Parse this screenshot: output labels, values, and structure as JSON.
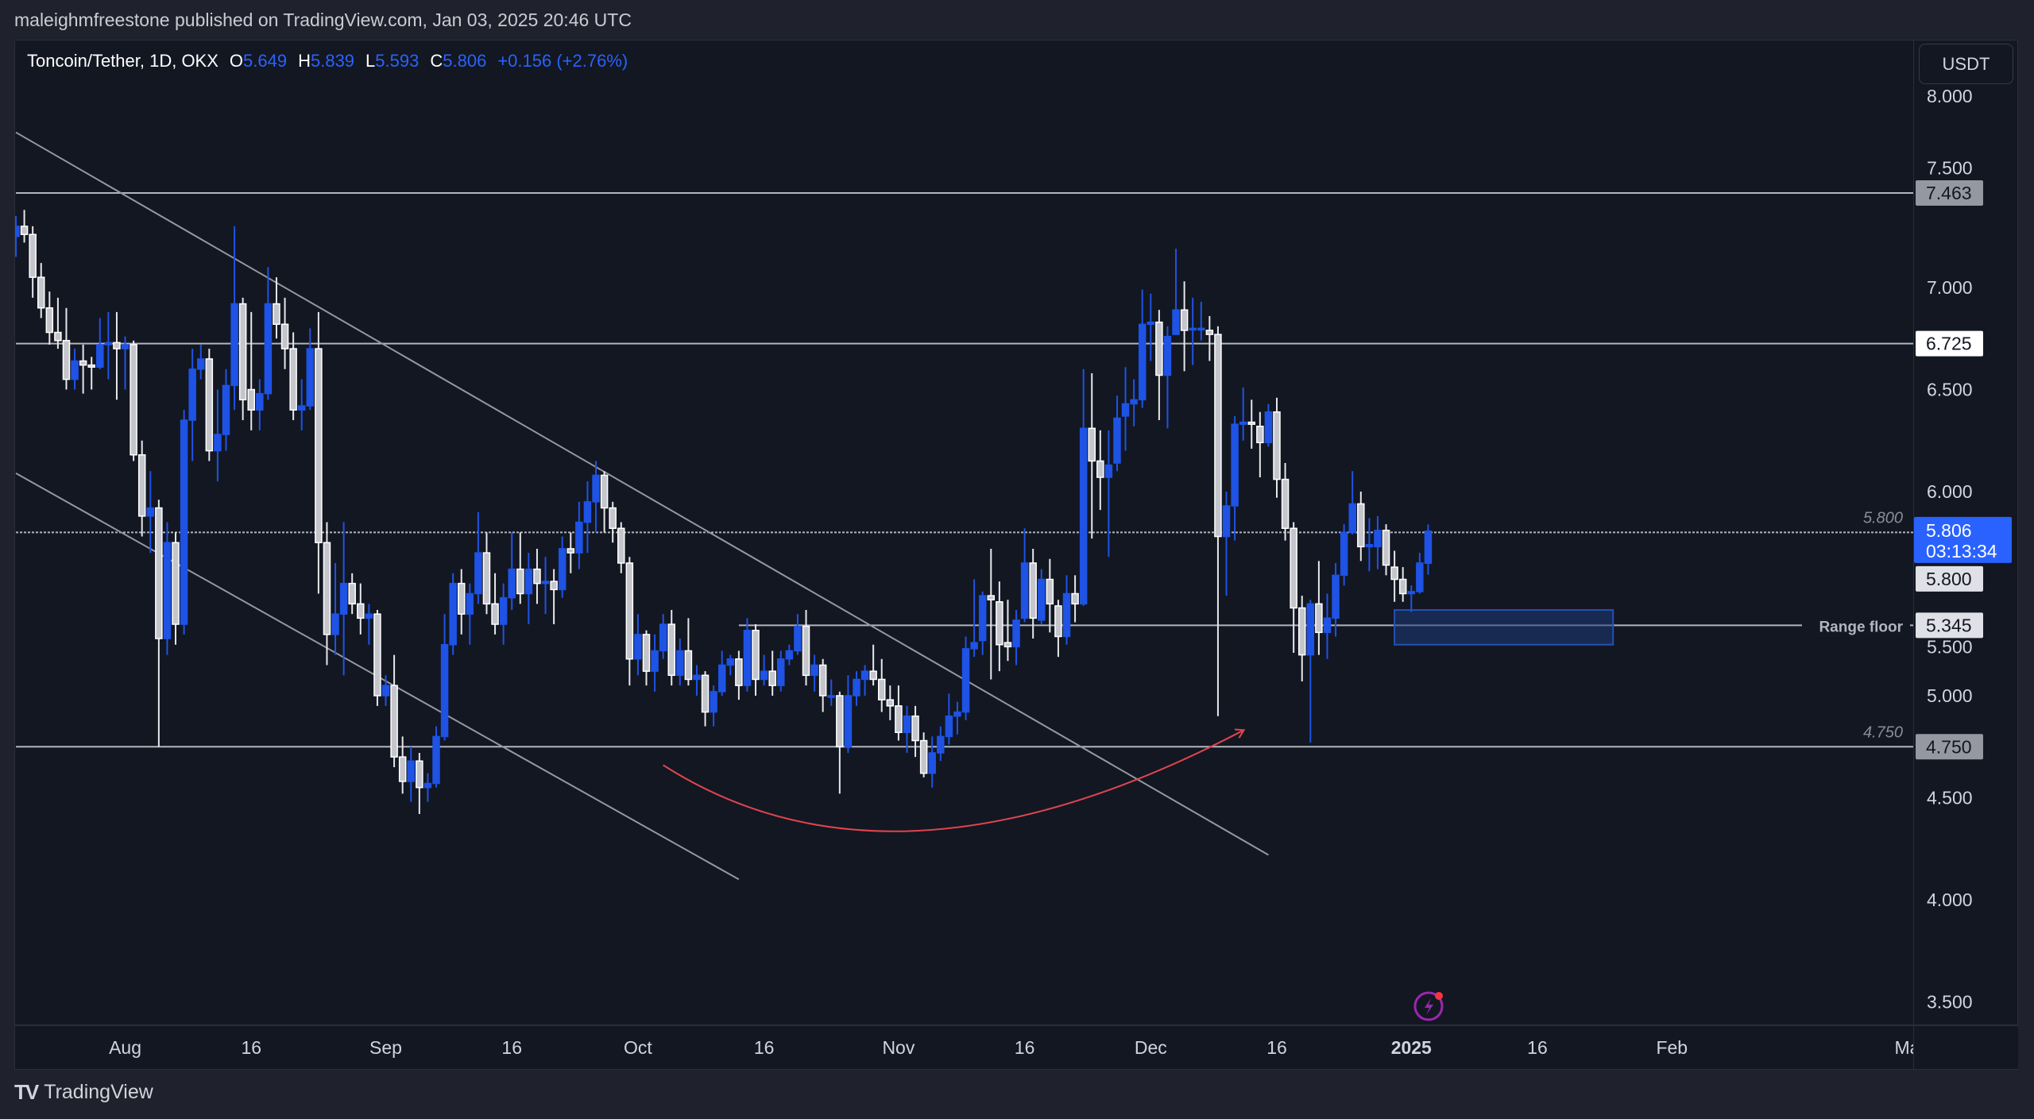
{
  "header": {
    "published": "maleighmfreestone published on TradingView.com, Jan 03, 2025 20:46 UTC"
  },
  "legend": {
    "symbol": "Toncoin/Tether, 1D, OKX",
    "o_label": "O",
    "o": "5.649",
    "h_label": "H",
    "h": "5.839",
    "l_label": "L",
    "l": "5.593",
    "c_label": "C",
    "c": "5.806",
    "change": "+0.156 (+2.76%)"
  },
  "currency_button": "USDT",
  "footer": {
    "brand": "TradingView",
    "logo_icon": "tradingview-logo-icon"
  },
  "colors": {
    "up": "#1e53e5",
    "down": "#c4c6cc",
    "down_border": "#ffffff",
    "last_price": "#2962ff",
    "arc": "#e0454f",
    "zone": "#1e3a7a",
    "background": "#131722"
  },
  "chart_data": {
    "type": "candlestick",
    "ylim": [
      3.4,
      8.2
    ],
    "y_ticks": [
      "8.000",
      "7.500",
      "7.000",
      "6.500",
      "6.000",
      "5.500",
      "5.000",
      "4.500",
      "4.000",
      "3.500"
    ],
    "x_ticks": [
      {
        "date": "2024-08-01",
        "label": "Aug"
      },
      {
        "date": "2024-08-16",
        "label": "16"
      },
      {
        "date": "2024-09-01",
        "label": "Sep"
      },
      {
        "date": "2024-09-16",
        "label": "16"
      },
      {
        "date": "2024-10-01",
        "label": "Oct"
      },
      {
        "date": "2024-10-16",
        "label": "16"
      },
      {
        "date": "2024-11-01",
        "label": "Nov"
      },
      {
        "date": "2024-11-16",
        "label": "16"
      },
      {
        "date": "2024-12-01",
        "label": "Dec"
      },
      {
        "date": "2024-12-16",
        "label": "16"
      },
      {
        "date": "2025-01-01",
        "label": "2025"
      },
      {
        "date": "2025-01-16",
        "label": "16"
      },
      {
        "date": "2025-02-01",
        "label": "Feb"
      },
      {
        "date": "2025-03-01",
        "label": "Ma"
      }
    ],
    "last_price": {
      "value": "5.806",
      "countdown": "03:13:34"
    },
    "price_labels": [
      {
        "value": "7.463",
        "style": "gray"
      },
      {
        "value": "6.725",
        "style": "white"
      },
      {
        "value": "5.800",
        "style": "light"
      },
      {
        "value": "5.345",
        "style": "light"
      },
      {
        "value": "4.750",
        "style": "gray"
      }
    ],
    "horizontal_lines": [
      {
        "price": 7.463,
        "from": "2024-07-19",
        "text": ""
      },
      {
        "price": 6.725,
        "from": "2024-07-19",
        "text": ""
      },
      {
        "price": 5.8,
        "from": "2024-07-19",
        "text": "5.800",
        "dotted": true
      },
      {
        "price": 5.345,
        "from": "2024-10-13",
        "text": "Range floor",
        "bold": true
      },
      {
        "price": 4.75,
        "from": "2024-07-19",
        "text": "4.750"
      }
    ],
    "trendlines": [
      {
        "from": [
          "2024-07-19",
          7.76
        ],
        "to": [
          "2024-12-15",
          4.22
        ]
      },
      {
        "from": [
          "2024-07-19",
          6.09
        ],
        "to": [
          "2024-10-13",
          4.1
        ]
      }
    ],
    "zone": {
      "from": "2024-12-30",
      "to": "2025-01-25",
      "top": 5.42,
      "bottom": 5.25
    },
    "arc": {
      "start": [
        "2024-10-04",
        4.66
      ],
      "bottom": [
        "2024-11-04",
        4.34
      ],
      "end": [
        "2024-12-12",
        4.83
      ]
    },
    "candles_fields": [
      "date",
      "open",
      "high",
      "low",
      "close"
    ],
    "candles": [
      [
        "2024-07-19",
        7.25,
        7.35,
        7.15,
        7.3
      ],
      [
        "2024-07-20",
        7.3,
        7.38,
        7.22,
        7.26
      ],
      [
        "2024-07-21",
        7.26,
        7.3,
        6.95,
        7.05
      ],
      [
        "2024-07-22",
        7.05,
        7.12,
        6.85,
        6.9
      ],
      [
        "2024-07-23",
        6.9,
        6.98,
        6.72,
        6.78
      ],
      [
        "2024-07-24",
        6.78,
        6.95,
        6.7,
        6.74
      ],
      [
        "2024-07-25",
        6.74,
        6.9,
        6.5,
        6.55
      ],
      [
        "2024-07-26",
        6.55,
        6.7,
        6.5,
        6.64
      ],
      [
        "2024-07-27",
        6.64,
        6.72,
        6.48,
        6.62
      ],
      [
        "2024-07-28",
        6.62,
        6.66,
        6.5,
        6.61
      ],
      [
        "2024-07-29",
        6.61,
        6.85,
        6.6,
        6.72
      ],
      [
        "2024-07-30",
        6.72,
        6.88,
        6.55,
        6.73
      ],
      [
        "2024-07-31",
        6.73,
        6.88,
        6.45,
        6.7
      ],
      [
        "2024-08-01",
        6.7,
        6.76,
        6.5,
        6.72
      ],
      [
        "2024-08-02",
        6.72,
        6.74,
        6.15,
        6.18
      ],
      [
        "2024-08-03",
        6.18,
        6.25,
        5.78,
        5.88
      ],
      [
        "2024-08-04",
        5.88,
        6.1,
        5.7,
        5.92
      ],
      [
        "2024-08-05",
        5.92,
        5.96,
        4.75,
        5.28
      ],
      [
        "2024-08-06",
        5.28,
        5.85,
        5.2,
        5.75
      ],
      [
        "2024-08-07",
        5.75,
        5.8,
        5.25,
        5.35
      ],
      [
        "2024-08-08",
        5.35,
        6.4,
        5.3,
        6.35
      ],
      [
        "2024-08-09",
        6.35,
        6.7,
        6.15,
        6.6
      ],
      [
        "2024-08-10",
        6.6,
        6.72,
        6.55,
        6.65
      ],
      [
        "2024-08-11",
        6.65,
        6.7,
        6.15,
        6.2
      ],
      [
        "2024-08-12",
        6.2,
        6.5,
        6.05,
        6.28
      ],
      [
        "2024-08-13",
        6.28,
        6.6,
        6.2,
        6.52
      ],
      [
        "2024-08-14",
        6.52,
        7.3,
        6.4,
        6.92
      ],
      [
        "2024-08-15",
        6.92,
        6.95,
        6.35,
        6.45
      ],
      [
        "2024-08-16",
        6.5,
        6.88,
        6.3,
        6.4
      ],
      [
        "2024-08-17",
        6.4,
        6.55,
        6.3,
        6.48
      ],
      [
        "2024-08-18",
        6.48,
        7.1,
        6.45,
        6.92
      ],
      [
        "2024-08-19",
        6.92,
        7.05,
        6.75,
        6.82
      ],
      [
        "2024-08-20",
        6.82,
        6.95,
        6.6,
        6.7
      ],
      [
        "2024-08-21",
        6.7,
        6.78,
        6.35,
        6.4
      ],
      [
        "2024-08-22",
        6.4,
        6.55,
        6.3,
        6.42
      ],
      [
        "2024-08-23",
        6.42,
        6.8,
        6.4,
        6.7
      ],
      [
        "2024-08-24",
        6.7,
        6.88,
        5.5,
        5.75
      ],
      [
        "2024-08-25",
        5.75,
        5.85,
        5.15,
        5.3
      ],
      [
        "2024-08-26",
        5.3,
        5.65,
        5.2,
        5.4
      ],
      [
        "2024-08-27",
        5.4,
        5.85,
        5.1,
        5.55
      ],
      [
        "2024-08-28",
        5.55,
        5.6,
        5.4,
        5.45
      ],
      [
        "2024-08-29",
        5.45,
        5.55,
        5.3,
        5.38
      ],
      [
        "2024-08-30",
        5.38,
        5.45,
        5.25,
        5.4
      ],
      [
        "2024-08-31",
        5.4,
        5.42,
        4.95,
        5.0
      ],
      [
        "2024-09-01",
        5.0,
        5.1,
        4.95,
        5.05
      ],
      [
        "2024-09-02",
        5.05,
        5.2,
        4.65,
        4.7
      ],
      [
        "2024-09-03",
        4.7,
        4.8,
        4.52,
        4.58
      ],
      [
        "2024-09-04",
        4.58,
        4.75,
        4.48,
        4.68
      ],
      [
        "2024-09-05",
        4.68,
        4.72,
        4.42,
        4.55
      ],
      [
        "2024-09-06",
        4.55,
        4.62,
        4.48,
        4.57
      ],
      [
        "2024-09-07",
        4.57,
        4.85,
        4.55,
        4.8
      ],
      [
        "2024-09-08",
        4.8,
        5.4,
        4.78,
        5.25
      ],
      [
        "2024-09-09",
        5.25,
        5.6,
        5.2,
        5.55
      ],
      [
        "2024-09-10",
        5.55,
        5.62,
        5.3,
        5.4
      ],
      [
        "2024-09-11",
        5.4,
        5.55,
        5.25,
        5.5
      ],
      [
        "2024-09-12",
        5.5,
        5.9,
        5.45,
        5.7
      ],
      [
        "2024-09-13",
        5.7,
        5.8,
        5.4,
        5.45
      ],
      [
        "2024-09-14",
        5.45,
        5.6,
        5.3,
        5.35
      ],
      [
        "2024-09-15",
        5.35,
        5.55,
        5.25,
        5.48
      ],
      [
        "2024-09-16",
        5.48,
        5.8,
        5.42,
        5.62
      ],
      [
        "2024-09-17",
        5.62,
        5.8,
        5.45,
        5.5
      ],
      [
        "2024-09-18",
        5.5,
        5.7,
        5.35,
        5.62
      ],
      [
        "2024-09-19",
        5.62,
        5.72,
        5.45,
        5.55
      ],
      [
        "2024-09-20",
        5.55,
        5.68,
        5.4,
        5.56
      ],
      [
        "2024-09-21",
        5.56,
        5.62,
        5.35,
        5.52
      ],
      [
        "2024-09-22",
        5.52,
        5.78,
        5.48,
        5.72
      ],
      [
        "2024-09-23",
        5.72,
        5.8,
        5.6,
        5.7
      ],
      [
        "2024-09-24",
        5.7,
        5.95,
        5.62,
        5.85
      ],
      [
        "2024-09-25",
        5.85,
        6.05,
        5.7,
        5.95
      ],
      [
        "2024-09-26",
        5.95,
        6.15,
        5.8,
        6.08
      ],
      [
        "2024-09-27",
        6.08,
        6.1,
        5.8,
        5.92
      ],
      [
        "2024-09-28",
        5.92,
        5.95,
        5.75,
        5.82
      ],
      [
        "2024-09-29",
        5.82,
        5.85,
        5.6,
        5.65
      ],
      [
        "2024-09-30",
        5.65,
        5.68,
        5.05,
        5.18
      ],
      [
        "2024-10-01",
        5.18,
        5.4,
        5.1,
        5.3
      ],
      [
        "2024-10-02",
        5.3,
        5.32,
        5.05,
        5.12
      ],
      [
        "2024-10-03",
        5.12,
        5.3,
        5.02,
        5.22
      ],
      [
        "2024-10-04",
        5.22,
        5.4,
        5.18,
        5.35
      ],
      [
        "2024-10-05",
        5.35,
        5.42,
        5.05,
        5.1
      ],
      [
        "2024-10-06",
        5.1,
        5.28,
        5.05,
        5.22
      ],
      [
        "2024-10-07",
        5.22,
        5.38,
        5.05,
        5.08
      ],
      [
        "2024-10-08",
        5.08,
        5.15,
        5.0,
        5.1
      ],
      [
        "2024-10-09",
        5.1,
        5.12,
        4.85,
        4.92
      ],
      [
        "2024-10-10",
        4.92,
        5.05,
        4.85,
        5.02
      ],
      [
        "2024-10-11",
        5.02,
        5.22,
        5.0,
        5.15
      ],
      [
        "2024-10-12",
        5.15,
        5.2,
        5.1,
        5.18
      ],
      [
        "2024-10-13",
        5.18,
        5.22,
        4.98,
        5.05
      ],
      [
        "2024-10-14",
        5.05,
        5.38,
        5.02,
        5.32
      ],
      [
        "2024-10-15",
        5.32,
        5.35,
        5.0,
        5.08
      ],
      [
        "2024-10-16",
        5.08,
        5.2,
        5.05,
        5.12
      ],
      [
        "2024-10-17",
        5.12,
        5.22,
        5.0,
        5.05
      ],
      [
        "2024-10-18",
        5.05,
        5.22,
        5.02,
        5.18
      ],
      [
        "2024-10-19",
        5.18,
        5.25,
        5.15,
        5.22
      ],
      [
        "2024-10-20",
        5.22,
        5.4,
        5.2,
        5.34
      ],
      [
        "2024-10-21",
        5.34,
        5.42,
        5.05,
        5.1
      ],
      [
        "2024-10-22",
        5.1,
        5.2,
        5.02,
        5.15
      ],
      [
        "2024-10-23",
        5.15,
        5.18,
        4.92,
        5.0
      ],
      [
        "2024-10-24",
        5.0,
        5.08,
        4.95,
        5.0
      ],
      [
        "2024-10-25",
        5.0,
        5.02,
        4.52,
        4.75
      ],
      [
        "2024-10-26",
        4.75,
        5.1,
        4.72,
        5.0
      ],
      [
        "2024-10-27",
        5.0,
        5.12,
        4.95,
        5.08
      ],
      [
        "2024-10-28",
        5.08,
        5.15,
        5.0,
        5.12
      ],
      [
        "2024-10-29",
        5.12,
        5.25,
        5.05,
        5.08
      ],
      [
        "2024-10-30",
        5.08,
        5.18,
        4.92,
        4.98
      ],
      [
        "2024-10-31",
        4.98,
        5.05,
        4.88,
        4.95
      ],
      [
        "2024-11-01",
        4.95,
        5.05,
        4.78,
        4.82
      ],
      [
        "2024-11-02",
        4.82,
        4.95,
        4.72,
        4.9
      ],
      [
        "2024-11-03",
        4.9,
        4.95,
        4.7,
        4.78
      ],
      [
        "2024-11-04",
        4.78,
        4.82,
        4.6,
        4.62
      ],
      [
        "2024-11-05",
        4.62,
        4.8,
        4.55,
        4.72
      ],
      [
        "2024-11-06",
        4.72,
        4.85,
        4.68,
        4.8
      ],
      [
        "2024-11-07",
        4.8,
        5.01,
        4.76,
        4.9
      ],
      [
        "2024-11-08",
        4.9,
        4.97,
        4.81,
        4.92
      ],
      [
        "2024-11-09",
        4.92,
        5.29,
        4.88,
        5.23
      ],
      [
        "2024-11-10",
        5.23,
        5.57,
        5.19,
        5.26
      ],
      [
        "2024-11-11",
        5.27,
        5.51,
        5.2,
        5.49
      ],
      [
        "2024-11-12",
        5.49,
        5.72,
        5.08,
        5.47
      ],
      [
        "2024-11-13",
        5.46,
        5.56,
        5.12,
        5.25
      ],
      [
        "2024-11-14",
        5.26,
        5.47,
        5.17,
        5.24
      ],
      [
        "2024-11-15",
        5.24,
        5.42,
        5.15,
        5.37
      ],
      [
        "2024-11-16",
        5.38,
        5.82,
        5.36,
        5.65
      ],
      [
        "2024-11-17",
        5.65,
        5.72,
        5.28,
        5.38
      ],
      [
        "2024-11-18",
        5.37,
        5.62,
        5.35,
        5.57
      ],
      [
        "2024-11-19",
        5.57,
        5.67,
        5.31,
        5.45
      ],
      [
        "2024-11-20",
        5.44,
        5.47,
        5.19,
        5.29
      ],
      [
        "2024-11-21",
        5.29,
        5.59,
        5.25,
        5.5
      ],
      [
        "2024-11-22",
        5.5,
        5.59,
        5.36,
        5.45
      ],
      [
        "2024-11-23",
        5.45,
        6.6,
        5.44,
        6.31
      ],
      [
        "2024-11-24",
        6.31,
        6.58,
        5.77,
        6.15
      ],
      [
        "2024-11-25",
        6.15,
        6.3,
        5.91,
        6.07
      ],
      [
        "2024-11-26",
        6.07,
        6.3,
        5.68,
        6.13
      ],
      [
        "2024-11-27",
        6.14,
        6.47,
        6.1,
        6.36
      ],
      [
        "2024-11-28",
        6.37,
        6.61,
        6.2,
        6.43
      ],
      [
        "2024-11-29",
        6.43,
        6.55,
        6.32,
        6.45
      ],
      [
        "2024-11-30",
        6.45,
        6.99,
        6.41,
        6.82
      ],
      [
        "2024-12-01",
        6.82,
        6.97,
        6.64,
        6.83
      ],
      [
        "2024-12-02",
        6.83,
        6.89,
        6.35,
        6.57
      ],
      [
        "2024-12-03",
        6.57,
        6.81,
        6.31,
        6.76
      ],
      [
        "2024-12-04",
        6.77,
        7.19,
        6.77,
        6.89
      ],
      [
        "2024-12-05",
        6.89,
        7.03,
        6.59,
        6.79
      ],
      [
        "2024-12-06",
        6.8,
        6.95,
        6.62,
        6.8
      ],
      [
        "2024-12-07",
        6.8,
        6.93,
        6.74,
        6.8
      ],
      [
        "2024-12-08",
        6.79,
        6.86,
        6.64,
        6.77
      ],
      [
        "2024-12-09",
        6.77,
        6.81,
        4.9,
        5.78
      ],
      [
        "2024-12-10",
        5.78,
        6.0,
        5.49,
        5.93
      ],
      [
        "2024-12-11",
        5.93,
        6.37,
        5.76,
        6.33
      ],
      [
        "2024-12-12",
        6.33,
        6.51,
        6.25,
        6.34
      ],
      [
        "2024-12-13",
        6.34,
        6.45,
        6.21,
        6.33
      ],
      [
        "2024-12-14",
        6.32,
        6.39,
        6.07,
        6.24
      ],
      [
        "2024-12-15",
        6.24,
        6.43,
        6.22,
        6.39
      ],
      [
        "2024-12-16",
        6.39,
        6.46,
        5.97,
        6.06
      ],
      [
        "2024-12-17",
        6.06,
        6.14,
        5.76,
        5.82
      ],
      [
        "2024-12-18",
        5.82,
        5.85,
        5.21,
        5.43
      ],
      [
        "2024-12-19",
        5.43,
        5.49,
        5.07,
        5.2
      ],
      [
        "2024-12-20",
        5.2,
        5.47,
        4.77,
        5.45
      ],
      [
        "2024-12-21",
        5.45,
        5.66,
        5.2,
        5.31
      ],
      [
        "2024-12-22",
        5.31,
        5.5,
        5.18,
        5.38
      ],
      [
        "2024-12-23",
        5.38,
        5.65,
        5.29,
        5.59
      ],
      [
        "2024-12-24",
        5.59,
        5.84,
        5.54,
        5.8
      ],
      [
        "2024-12-25",
        5.8,
        6.1,
        5.79,
        5.94
      ],
      [
        "2024-12-26",
        5.94,
        6.0,
        5.66,
        5.73
      ],
      [
        "2024-12-27",
        5.73,
        5.87,
        5.61,
        5.74
      ],
      [
        "2024-12-28",
        5.73,
        5.88,
        5.62,
        5.81
      ],
      [
        "2024-12-29",
        5.81,
        5.84,
        5.59,
        5.64
      ],
      [
        "2024-12-30",
        5.63,
        5.71,
        5.46,
        5.57
      ],
      [
        "2024-12-31",
        5.57,
        5.63,
        5.46,
        5.5
      ],
      [
        "2025-01-01",
        5.5,
        5.54,
        5.41,
        5.51
      ],
      [
        "2025-01-02",
        5.51,
        5.7,
        5.5,
        5.65
      ],
      [
        "2025-01-03",
        5.649,
        5.839,
        5.593,
        5.806
      ]
    ]
  }
}
